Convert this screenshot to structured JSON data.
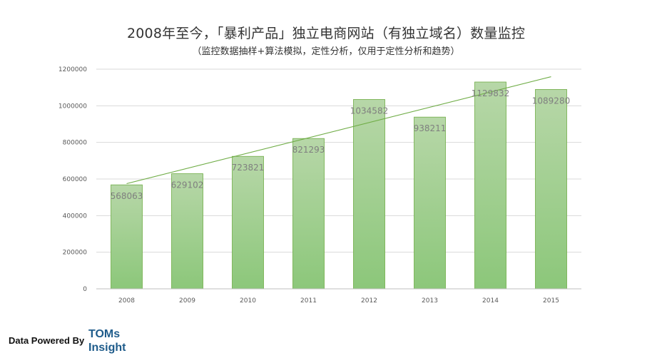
{
  "title": "2008年至今，「暴利产品」独立电商网站（有独立域名）数量监控",
  "subtitle": "（监控数据抽样+算法模拟，定性分析，仅用于定性分析和趋势）",
  "footer": {
    "label": "Data Powered By",
    "brand_line1": "TOMs",
    "brand_line2": "Insight",
    "brand_color": "#1f5c8b"
  },
  "chart_data": {
    "type": "bar",
    "categories": [
      "2008",
      "2009",
      "2010",
      "2011",
      "2012",
      "2013",
      "2014",
      "2015"
    ],
    "values": [
      568063,
      629102,
      723821,
      821293,
      1034582,
      938211,
      1129832,
      1089280
    ],
    "ylim": [
      0,
      1200000
    ],
    "yticks": [
      0,
      200000,
      400000,
      600000,
      800000,
      1000000,
      1200000
    ],
    "grid": true,
    "trendline": "linear",
    "colors": {
      "bar_top": "#b7d7a8",
      "bar_bottom": "#8cc77a",
      "bar_stroke": "#70ad47",
      "trendline": "#70ad47",
      "data_label": "#7f7f7f",
      "grid": "#d9d9d9"
    }
  }
}
